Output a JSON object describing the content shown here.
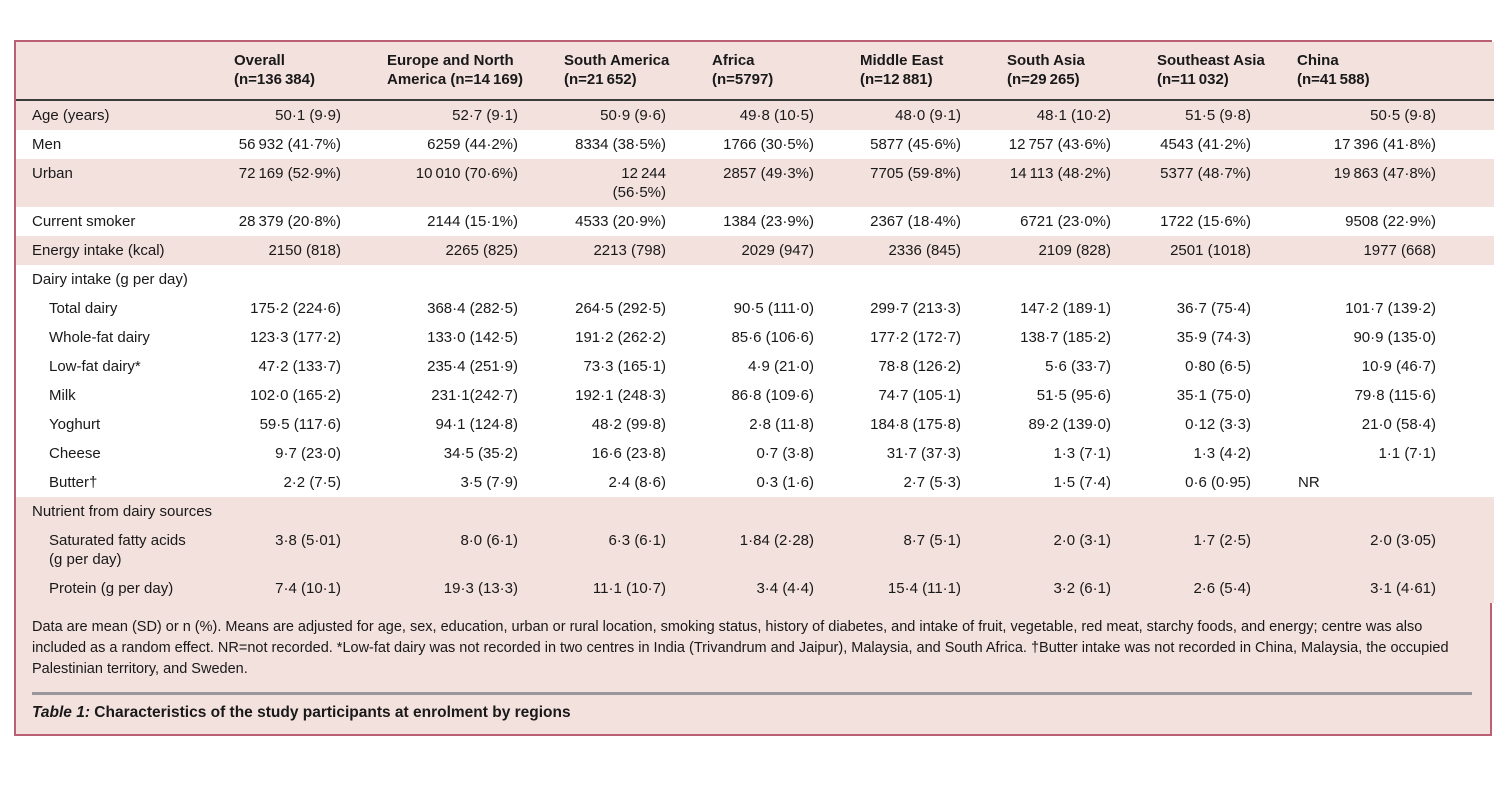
{
  "colors": {
    "table_background": "#f3e1de",
    "table_border": "#bb5f72",
    "header_rule": "#3a3a3a",
    "caption_rule": "#9a979c",
    "text": "#191919"
  },
  "table": {
    "caption_prefix": "Table 1:",
    "caption_text": " Characteristics of the study participants at enrolment by regions",
    "columns": [
      "Overall\n(n=136 384)",
      "Europe and North\nAmerica (n=14 169)",
      "South America\n(n=21 652)",
      "Africa\n(n=5797)",
      "Middle East\n(n=12 881)",
      "South Asia\n(n=29 265)",
      "Southeast Asia\n(n=11 032)",
      "China\n(n=41 588)"
    ],
    "rows": [
      {
        "label": "Age (years)",
        "shade": "pink",
        "values": [
          "50·1 (9·9)",
          "52·7 (9·1)",
          "50·9 (9·6)",
          "49·8 (10·5)",
          "48·0 (9·1)",
          "48·1 (10·2)",
          "51·5 (9·8)",
          "50·5 (9·8)"
        ]
      },
      {
        "label": "Men",
        "shade": "white",
        "values": [
          "56 932 (41·7%)",
          "6259 (44·2%)",
          "8334 (38·5%)",
          "1766 (30·5%)",
          "5877 (45·6%)",
          "12 757 (43·6%)",
          "4543 (41·2%)",
          "17 396 (41·8%)"
        ]
      },
      {
        "label": "Urban",
        "shade": "pink",
        "values": [
          "72 169 (52·9%)",
          "10 010 (70·6%)",
          "12 244 (56·5%)",
          "2857 (49·3%)",
          "7705 (59·8%)",
          "14 113 (48·2%)",
          "5377 (48·7%)",
          "19 863 (47·8%)"
        ]
      },
      {
        "label": "Current smoker",
        "shade": "white",
        "values": [
          "28 379 (20·8%)",
          "2144 (15·1%)",
          "4533 (20·9%)",
          "1384 (23·9%)",
          "2367 (18·4%)",
          "6721 (23·0%)",
          "1722 (15·6%)",
          "9508 (22·9%)"
        ]
      },
      {
        "label": "Energy intake (kcal)",
        "shade": "pink",
        "values": [
          "2150 (818)",
          "2265 (825)",
          "2213 (798)",
          "2029 (947)",
          "2336 (845)",
          "2109 (828)",
          "2501 (1018)",
          "1977 (668)"
        ]
      },
      {
        "label": "Dairy intake (g per day)",
        "shade": "white",
        "section": true
      },
      {
        "label": "Total dairy",
        "indent": true,
        "shade": "white",
        "values": [
          "175·2 (224·6)",
          "368·4 (282·5)",
          "264·5 (292·5)",
          "90·5 (111·0)",
          "299·7 (213·3)",
          "147·2 (189·1)",
          "36·7 (75·4)",
          "101·7 (139·2)"
        ]
      },
      {
        "label": "Whole-fat dairy",
        "indent": true,
        "shade": "white",
        "values": [
          "123·3 (177·2)",
          "133·0 (142·5)",
          "191·2 (262·2)",
          "85·6 (106·6)",
          "177·2 (172·7)",
          "138·7 (185·2)",
          "35·9 (74·3)",
          "90·9 (135·0)"
        ]
      },
      {
        "label": "Low-fat dairy*",
        "indent": true,
        "shade": "white",
        "values": [
          "47·2 (133·7)",
          "235·4 (251·9)",
          "73·3 (165·1)",
          "4·9 (21·0)",
          "78·8 (126·2)",
          "5·6 (33·7)",
          "0·80 (6·5)",
          "10·9 (46·7)"
        ]
      },
      {
        "label": "Milk",
        "indent": true,
        "shade": "white",
        "values": [
          "102·0 (165·2)",
          "231·1(242·7)",
          "192·1 (248·3)",
          "86·8 (109·6)",
          "74·7 (105·1)",
          "51·5 (95·6)",
          "35·1 (75·0)",
          "79·8 (115·6)"
        ]
      },
      {
        "label": "Yoghurt",
        "indent": true,
        "shade": "white",
        "values": [
          "59·5 (117·6)",
          "94·1 (124·8)",
          "48·2 (99·8)",
          "2·8 (11·8)",
          "184·8 (175·8)",
          "89·2 (139·0)",
          "0·12 (3·3)",
          "21·0 (58·4)"
        ]
      },
      {
        "label": "Cheese",
        "indent": true,
        "shade": "white",
        "values": [
          "9·7 (23·0)",
          "34·5 (35·2)",
          "16·6 (23·8)",
          "0·7 (3·8)",
          "31·7 (37·3)",
          "1·3 (7·1)",
          "1·3 (4·2)",
          "1·1 (7·1)"
        ]
      },
      {
        "label": "Butter†",
        "indent": true,
        "shade": "white",
        "values": [
          "2·2 (7·5)",
          "3·5 (7·9)",
          "2·4 (8·6)",
          "0·3 (1·6)",
          "2·7 (5·3)",
          "1·5 (7·4)",
          "0·6 (0·95)",
          "NR"
        ]
      },
      {
        "label": "Nutrient from dairy sources",
        "shade": "pink",
        "section": true
      },
      {
        "label": "Saturated fatty acids\n(g per day)",
        "indent": true,
        "shade": "pink",
        "values": [
          "3·8 (5·01)",
          "8·0 (6·1)",
          "6·3 (6·1)",
          "1·84 (2·28)",
          "8·7 (5·1)",
          "2·0 (3·1)",
          "1·7 (2·5)",
          "2·0 (3·05)"
        ]
      },
      {
        "label": "Protein (g per day)",
        "indent": true,
        "shade": "pink",
        "values": [
          "7·4 (10·1)",
          "19·3 (13·3)",
          "11·1 (10·7)",
          "3·4 (4·4)",
          "15·4 (11·1)",
          "3·2 (6·1)",
          "2·6 (5·4)",
          "3·1 (4·61)"
        ]
      }
    ],
    "footnote": "Data are mean (SD) or n (%). Means are adjusted for age, sex, education, urban or rural location, smoking status, history of diabetes, and intake of fruit, vegetable, red meat, starchy foods, and energy; centre was also included as a random effect. NR=not recorded. *Low-fat dairy was not recorded in two centres in India (Trivandrum and Jaipur), Malaysia, and South Africa. †Butter intake was not recorded in China, Malaysia, the occupied Palestinian territory, and Sweden."
  }
}
